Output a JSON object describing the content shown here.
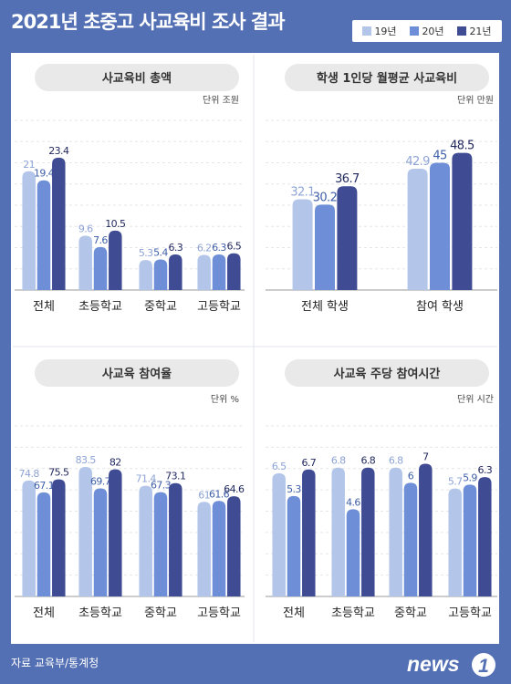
{
  "title": "2021년 초중고 사교육비 조사 결과",
  "legend": [
    {
      "name": "19년",
      "color": "#b3c6ea"
    },
    {
      "name": "20년",
      "color": "#6e8fd8"
    },
    {
      "name": "21년",
      "color": "#3f4b93"
    }
  ],
  "footer": "자료 교육부/통계청",
  "logo": "news1",
  "chart_data": [
    {
      "type": "bar",
      "title": "사교육비 총액",
      "unit": "단위 조원",
      "categories": [
        "전체",
        "초등학교",
        "중학교",
        "고등학교"
      ],
      "series": [
        {
          "name": "19년",
          "values": [
            21,
            9.6,
            5.3,
            6.2
          ]
        },
        {
          "name": "20년",
          "values": [
            19.4,
            7.6,
            5.4,
            6.3
          ]
        },
        {
          "name": "21년",
          "values": [
            23.4,
            10.5,
            6.3,
            6.5
          ]
        }
      ],
      "labels": [
        [
          "21",
          "9.6",
          "5.3",
          "6.2"
        ],
        [
          "19.4",
          "7.6",
          "5.4",
          "6.3"
        ],
        [
          "23.4",
          "10.5",
          "6.3",
          "6.5"
        ]
      ],
      "ylim": [
        0,
        30
      ],
      "grid": true
    },
    {
      "type": "bar",
      "title": "학생 1인당 월평균 사교육비",
      "unit": "단위 만원",
      "categories": [
        "전체 학생",
        "참여 학생"
      ],
      "series": [
        {
          "name": "19년",
          "values": [
            32.1,
            42.9
          ]
        },
        {
          "name": "20년",
          "values": [
            30.2,
            45
          ]
        },
        {
          "name": "21년",
          "values": [
            36.7,
            48.5
          ]
        }
      ],
      "labels": [
        [
          "32.1",
          "42.9"
        ],
        [
          "30.2",
          "45"
        ],
        [
          "36.7",
          "48.5"
        ]
      ],
      "ylim": [
        0,
        60
      ],
      "grid": true
    },
    {
      "type": "bar",
      "title": "사교육 참여율",
      "unit": "단위 %",
      "categories": [
        "전체",
        "초등학교",
        "중학교",
        "고등학교"
      ],
      "series": [
        {
          "name": "19년",
          "values": [
            74.8,
            83.5,
            71.4,
            61
          ]
        },
        {
          "name": "20년",
          "values": [
            67.1,
            69.7,
            67.3,
            61.6
          ]
        },
        {
          "name": "21년",
          "values": [
            75.5,
            82,
            73.1,
            64.6
          ]
        }
      ],
      "labels": [
        [
          "74.8",
          "83.5",
          "71.4",
          "61"
        ],
        [
          "67.1",
          "69.7",
          "67.3",
          "61.6"
        ],
        [
          "75.5",
          "82",
          "73.1",
          "64.6"
        ]
      ],
      "ylim": [
        0,
        110
      ],
      "grid": true
    },
    {
      "type": "bar",
      "title": "사교육 주당 참여시간",
      "unit": "단위 시간",
      "categories": [
        "전체",
        "초등학교",
        "중학교",
        "고등학교"
      ],
      "series": [
        {
          "name": "19년",
          "values": [
            6.5,
            6.8,
            6.8,
            5.7
          ]
        },
        {
          "name": "20년",
          "values": [
            5.3,
            4.6,
            6,
            5.9
          ]
        },
        {
          "name": "21년",
          "values": [
            6.7,
            6.8,
            7,
            6.3
          ]
        }
      ],
      "labels": [
        [
          "6.5",
          "6.8",
          "6.8",
          "5.7"
        ],
        [
          "5.3",
          "4.6",
          "6",
          "5.9"
        ],
        [
          "6.7",
          "6.8",
          "7",
          "6.3"
        ]
      ],
      "ylim": [
        0,
        9
      ],
      "grid": true
    }
  ]
}
